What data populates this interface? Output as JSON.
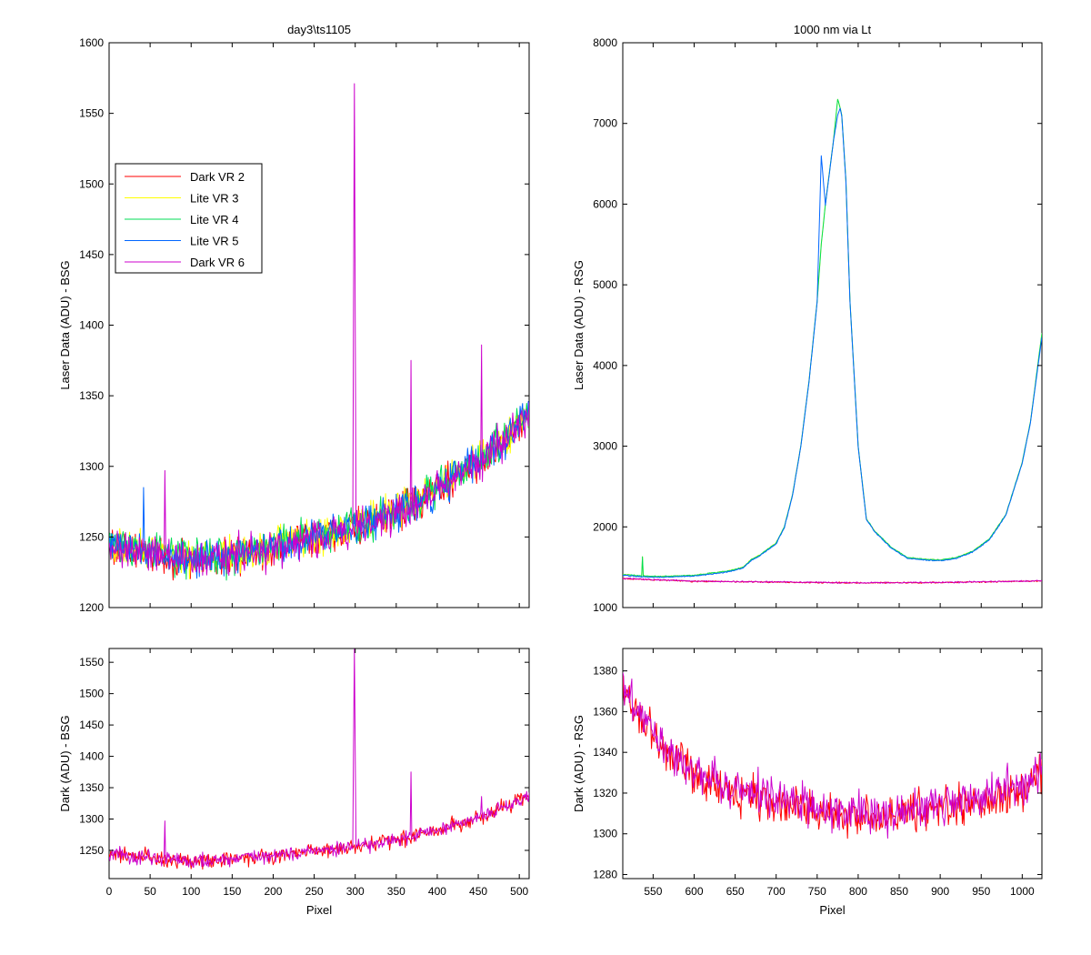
{
  "chart_data": [
    {
      "id": "top_left",
      "type": "line",
      "title": "day3\\ts1105",
      "xlabel": "",
      "ylabel": "Laser Data (ADU) - BSG",
      "xlim": [
        0,
        512
      ],
      "ylim": [
        1200,
        1600
      ],
      "xticks": [
        0,
        50,
        100,
        150,
        200,
        250,
        300,
        350,
        400,
        450,
        500
      ],
      "yticks": [
        1200,
        1250,
        1300,
        1350,
        1400,
        1450,
        1500,
        1550,
        1600
      ],
      "show_xticklabels": false,
      "legend": {
        "position": "upper-left",
        "entries": [
          {
            "name": "Dark VR 2",
            "color": "#ff0000"
          },
          {
            "name": "Lite VR 3",
            "color": "#ffff00"
          },
          {
            "name": "Lite VR 4",
            "color": "#00dd55"
          },
          {
            "name": "Lite VR 5",
            "color": "#0066ff"
          },
          {
            "name": "Dark VR 6",
            "color": "#cc00cc"
          }
        ]
      },
      "series": [
        {
          "name": "Dark VR 2",
          "color": "#ff0000",
          "noise": 12,
          "x": [
            0,
            50,
            100,
            150,
            200,
            250,
            300,
            350,
            400,
            450,
            480,
            512
          ],
          "y": [
            1245,
            1238,
            1233,
            1236,
            1242,
            1249,
            1256,
            1267,
            1282,
            1302,
            1318,
            1336
          ],
          "spikes": []
        },
        {
          "name": "Lite VR 3",
          "color": "#ffff00",
          "noise": 12,
          "x": [
            0,
            50,
            100,
            150,
            200,
            250,
            300,
            350,
            400,
            450,
            480,
            512
          ],
          "y": [
            1246,
            1240,
            1235,
            1238,
            1244,
            1251,
            1258,
            1269,
            1285,
            1305,
            1320,
            1338
          ],
          "spikes": []
        },
        {
          "name": "Lite VR 4",
          "color": "#00dd55",
          "noise": 12,
          "x": [
            0,
            50,
            100,
            150,
            200,
            250,
            300,
            350,
            400,
            450,
            480,
            512
          ],
          "y": [
            1247,
            1240,
            1235,
            1238,
            1244,
            1251,
            1258,
            1269,
            1285,
            1305,
            1320,
            1338
          ],
          "spikes": []
        },
        {
          "name": "Lite VR 5",
          "color": "#0066ff",
          "noise": 12,
          "x": [
            0,
            50,
            100,
            150,
            200,
            250,
            300,
            350,
            400,
            450,
            480,
            512
          ],
          "y": [
            1245,
            1239,
            1234,
            1237,
            1243,
            1250,
            1257,
            1268,
            1284,
            1304,
            1319,
            1337
          ],
          "spikes": [
            [
              42,
              1285
            ]
          ]
        },
        {
          "name": "Dark VR 6",
          "color": "#cc00cc",
          "noise": 12,
          "x": [
            0,
            50,
            100,
            150,
            200,
            250,
            300,
            350,
            400,
            450,
            480,
            512
          ],
          "y": [
            1244,
            1238,
            1233,
            1236,
            1242,
            1249,
            1256,
            1267,
            1282,
            1302,
            1318,
            1336
          ],
          "spikes": [
            [
              68,
              1297
            ],
            [
              298,
              1425
            ],
            [
              299,
              1571
            ],
            [
              300,
              1410
            ],
            [
              368,
              1375
            ],
            [
              454,
              1386
            ]
          ]
        }
      ]
    },
    {
      "id": "top_right",
      "type": "line",
      "title": "1000 nm via Lt",
      "xlabel": "",
      "ylabel": "Laser Data (ADU) - RSG",
      "xlim": [
        513,
        1024
      ],
      "ylim": [
        1000,
        8000
      ],
      "xticks": [
        550,
        600,
        650,
        700,
        750,
        800,
        850,
        900,
        950,
        1000
      ],
      "yticks": [
        1000,
        2000,
        3000,
        4000,
        5000,
        6000,
        7000,
        8000
      ],
      "show_xticklabels": false,
      "series": [
        {
          "name": "Dark VR 2",
          "color": "#ff0000",
          "noise": 8,
          "x": [
            513,
            600,
            700,
            800,
            900,
            1024
          ],
          "y": [
            1360,
            1325,
            1315,
            1305,
            1310,
            1330
          ],
          "spikes": []
        },
        {
          "name": "Lite VR 3",
          "color": "#ffff00",
          "noise": 6,
          "x": [
            513,
            540,
            560,
            600,
            640,
            660,
            670,
            680,
            700,
            710,
            720,
            730,
            740,
            750,
            755,
            760,
            770,
            775,
            778,
            780,
            785,
            790,
            800,
            810,
            820,
            840,
            860,
            880,
            900,
            920,
            940,
            960,
            980,
            1000,
            1010,
            1024
          ],
          "y": [
            1410,
            1390,
            1385,
            1400,
            1450,
            1500,
            1600,
            1650,
            1800,
            2000,
            2400,
            3000,
            3800,
            4800,
            5500,
            6000,
            6800,
            7300,
            7200,
            7100,
            6300,
            4800,
            3000,
            2100,
            1950,
            1750,
            1620,
            1600,
            1590,
            1620,
            1700,
            1850,
            2150,
            2800,
            3300,
            4400
          ],
          "spikes": [
            [
              537,
              1630
            ]
          ]
        },
        {
          "name": "Lite VR 4",
          "color": "#00dd55",
          "noise": 6,
          "x": [
            513,
            540,
            560,
            600,
            640,
            660,
            670,
            680,
            700,
            710,
            720,
            730,
            740,
            750,
            755,
            760,
            770,
            775,
            778,
            780,
            785,
            790,
            800,
            810,
            820,
            840,
            860,
            880,
            900,
            920,
            940,
            960,
            980,
            1000,
            1010,
            1024
          ],
          "y": [
            1410,
            1390,
            1385,
            1400,
            1450,
            1500,
            1600,
            1650,
            1800,
            2000,
            2400,
            3000,
            3800,
            4800,
            5500,
            6000,
            6800,
            7300,
            7200,
            7100,
            6300,
            4800,
            3000,
            2100,
            1950,
            1750,
            1620,
            1600,
            1590,
            1620,
            1700,
            1850,
            2150,
            2800,
            3300,
            4400
          ],
          "spikes": [
            [
              537,
              1630
            ]
          ]
        },
        {
          "name": "Lite VR 5",
          "color": "#0066ff",
          "noise": 6,
          "x": [
            513,
            540,
            560,
            600,
            640,
            660,
            670,
            680,
            700,
            710,
            720,
            730,
            740,
            750,
            755,
            760,
            770,
            775,
            778,
            780,
            785,
            790,
            800,
            810,
            820,
            840,
            860,
            880,
            900,
            920,
            940,
            960,
            980,
            1000,
            1010,
            1024
          ],
          "y": [
            1400,
            1380,
            1375,
            1390,
            1440,
            1490,
            1590,
            1640,
            1790,
            1990,
            2390,
            2990,
            3790,
            4790,
            6600,
            5990,
            6790,
            7100,
            7190,
            7090,
            6290,
            4790,
            2990,
            2090,
            1940,
            1740,
            1610,
            1590,
            1580,
            1610,
            1690,
            1840,
            2140,
            2790,
            3290,
            4350
          ],
          "spikes": []
        },
        {
          "name": "Dark VR 6",
          "color": "#cc00cc",
          "noise": 8,
          "x": [
            513,
            600,
            700,
            800,
            900,
            1024
          ],
          "y": [
            1362,
            1327,
            1317,
            1307,
            1312,
            1332
          ],
          "spikes": []
        }
      ]
    },
    {
      "id": "bottom_left",
      "type": "line",
      "title": "",
      "xlabel": "Pixel",
      "ylabel": "Dark (ADU) - BSG",
      "xlim": [
        0,
        512
      ],
      "ylim": [
        1205,
        1572
      ],
      "xticks": [
        0,
        50,
        100,
        150,
        200,
        250,
        300,
        350,
        400,
        450,
        500
      ],
      "yticks": [
        1250,
        1300,
        1350,
        1400,
        1450,
        1500,
        1550
      ],
      "show_xticklabels": true,
      "series": [
        {
          "name": "Dark VR 2",
          "color": "#ff0000",
          "noise": 11,
          "x": [
            0,
            50,
            100,
            150,
            200,
            250,
            300,
            350,
            400,
            450,
            480,
            512
          ],
          "y": [
            1245,
            1238,
            1233,
            1236,
            1242,
            1249,
            1256,
            1267,
            1282,
            1302,
            1318,
            1336
          ],
          "spikes": []
        },
        {
          "name": "Dark VR 6",
          "color": "#cc00cc",
          "noise": 11,
          "x": [
            0,
            50,
            100,
            150,
            200,
            250,
            300,
            350,
            400,
            450,
            480,
            512
          ],
          "y": [
            1244,
            1238,
            1233,
            1236,
            1242,
            1249,
            1256,
            1267,
            1282,
            1302,
            1318,
            1336
          ],
          "spikes": [
            [
              68,
              1297
            ],
            [
              298,
              1425
            ],
            [
              299,
              1571
            ],
            [
              300,
              1410
            ],
            [
              368,
              1375
            ],
            [
              454,
              1336
            ]
          ]
        }
      ]
    },
    {
      "id": "bottom_right",
      "type": "line",
      "title": "",
      "xlabel": "Pixel",
      "ylabel": "Dark (ADU) - RSG",
      "xlim": [
        513,
        1024
      ],
      "ylim": [
        1278,
        1391
      ],
      "xticks": [
        550,
        600,
        650,
        700,
        750,
        800,
        850,
        900,
        950,
        1000
      ],
      "yticks": [
        1280,
        1300,
        1320,
        1340,
        1360,
        1380
      ],
      "show_xticklabels": true,
      "series": [
        {
          "name": "Dark VR 2",
          "color": "#ff0000",
          "noise": 9,
          "x": [
            513,
            530,
            560,
            600,
            650,
            700,
            750,
            800,
            850,
            900,
            950,
            1000,
            1024
          ],
          "y": [
            1372,
            1358,
            1342,
            1330,
            1320,
            1316,
            1311,
            1308,
            1309,
            1312,
            1316,
            1322,
            1328
          ],
          "spikes": []
        },
        {
          "name": "Dark VR 6",
          "color": "#cc00cc",
          "noise": 9,
          "x": [
            513,
            530,
            560,
            600,
            650,
            700,
            750,
            800,
            850,
            900,
            950,
            1000,
            1024
          ],
          "y": [
            1375,
            1360,
            1344,
            1332,
            1322,
            1318,
            1313,
            1310,
            1311,
            1314,
            1318,
            1324,
            1330
          ],
          "spikes": []
        }
      ]
    }
  ]
}
